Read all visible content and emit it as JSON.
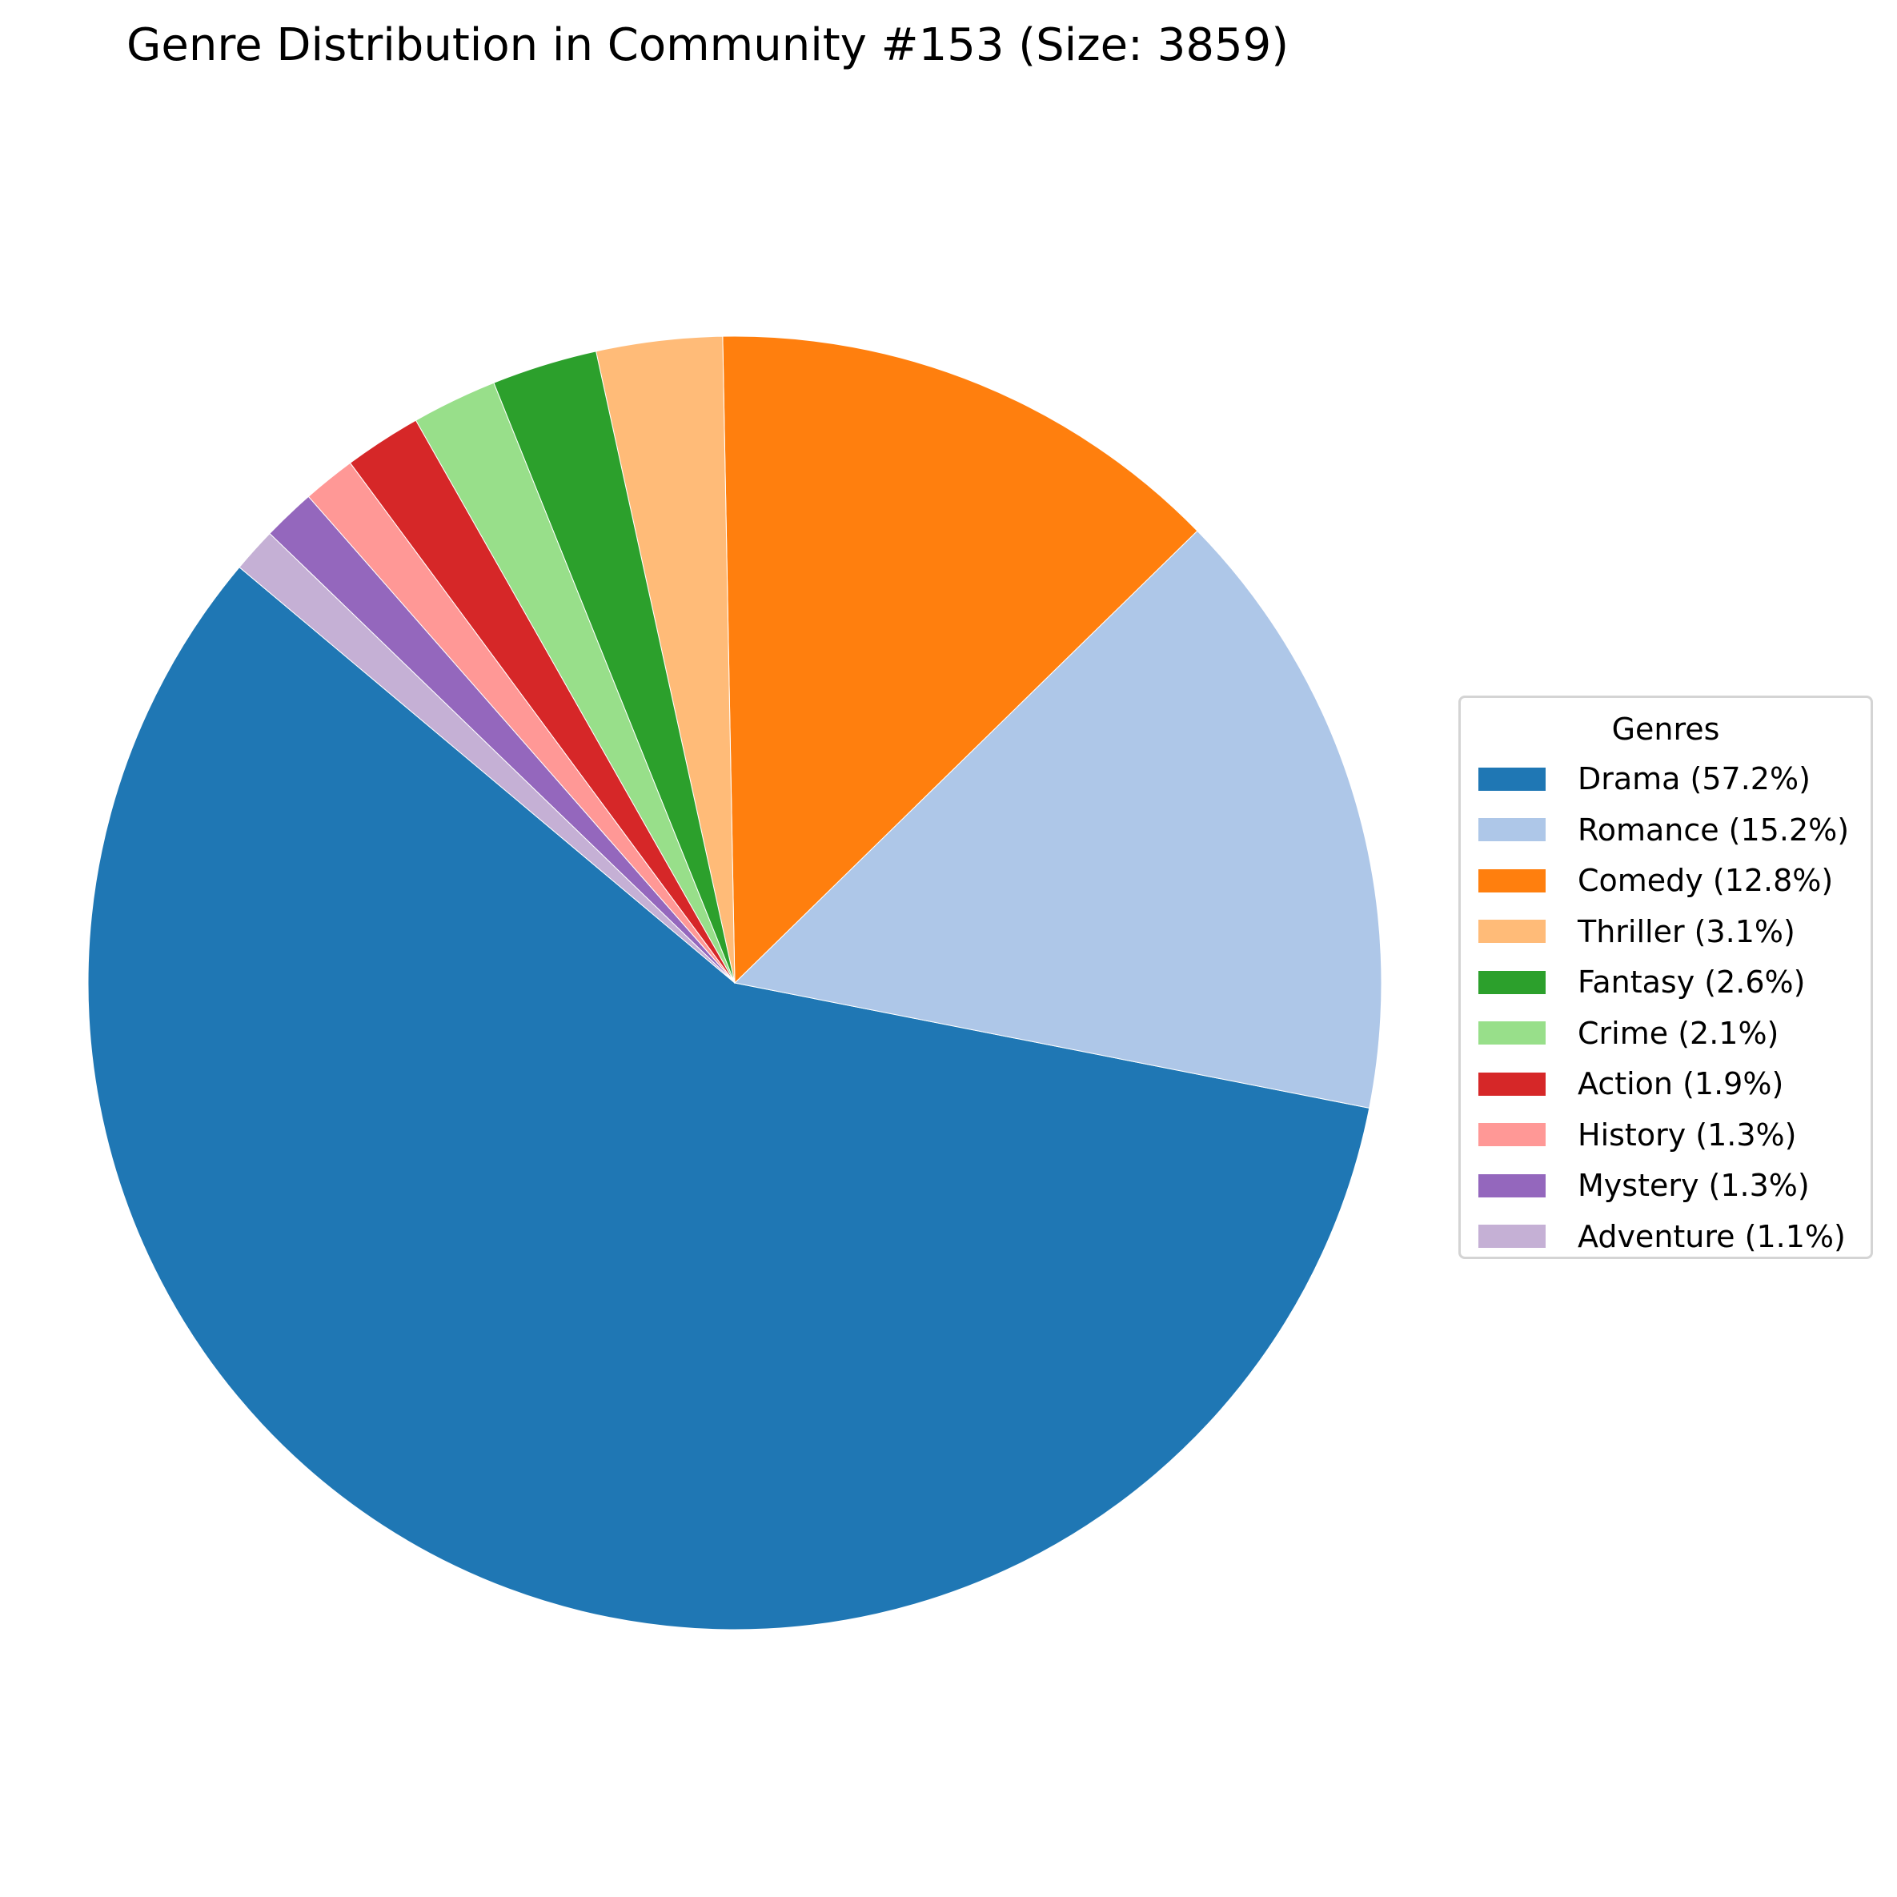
{
  "chart_data": {
    "type": "pie",
    "title": "Genre Distribution in Community #153 (Size: 3859)",
    "legend_title": "Genres",
    "legend_placement": "right",
    "start_angle_deg": 140,
    "direction": "counterclockwise",
    "slices": [
      {
        "label": "Drama (57.2%)",
        "value": 57.2,
        "color": "#1f77b4"
      },
      {
        "label": "Romance (15.2%)",
        "value": 15.2,
        "color": "#aec7e8"
      },
      {
        "label": "Comedy (12.8%)",
        "value": 12.8,
        "color": "#ff7f0e"
      },
      {
        "label": "Thriller (3.1%)",
        "value": 3.1,
        "color": "#ffbb78"
      },
      {
        "label": "Fantasy (2.6%)",
        "value": 2.6,
        "color": "#2ca02c"
      },
      {
        "label": "Crime (2.1%)",
        "value": 2.1,
        "color": "#98df8a"
      },
      {
        "label": "Action (1.9%)",
        "value": 1.9,
        "color": "#d62728"
      },
      {
        "label": "History (1.3%)",
        "value": 1.3,
        "color": "#ff9896"
      },
      {
        "label": "Mystery (1.3%)",
        "value": 1.3,
        "color": "#9467bd"
      },
      {
        "label": "Adventure (1.1%)",
        "value": 1.1,
        "color": "#c5b0d5"
      }
    ]
  }
}
